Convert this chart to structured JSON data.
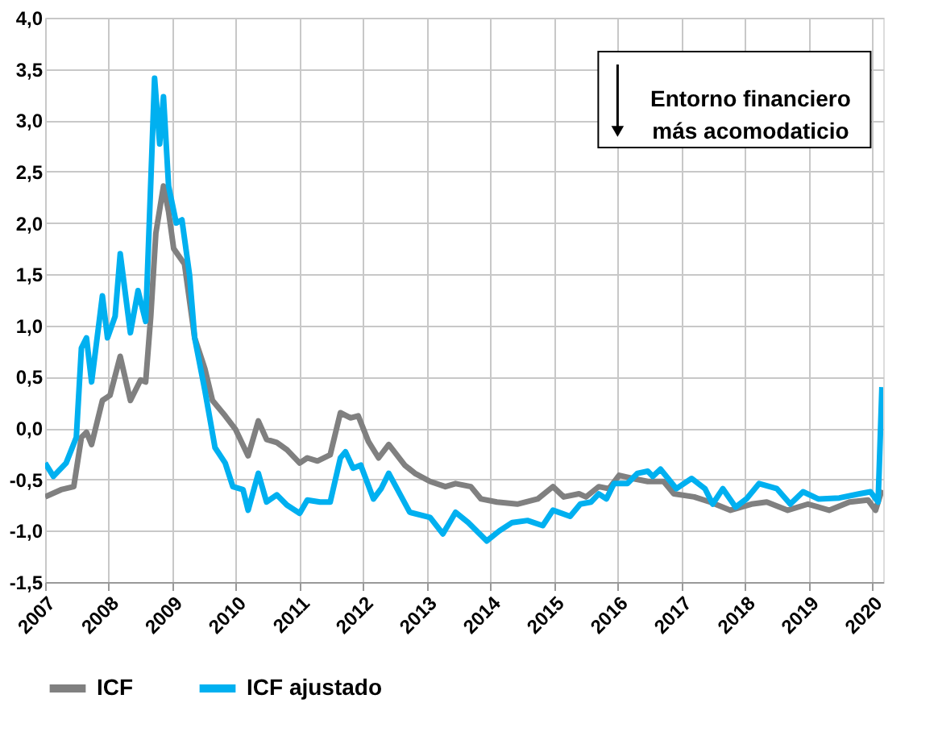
{
  "chart_data": {
    "type": "line",
    "xlim": [
      2007,
      2020.17
    ],
    "xticks": [
      2007,
      2008,
      2009,
      2010,
      2011,
      2012,
      2013,
      2014,
      2015,
      2016,
      2017,
      2018,
      2019,
      2020
    ],
    "ylim": [
      -1.5,
      4.0
    ],
    "yticks": [
      {
        "value": -1.5,
        "label": "-1,5"
      },
      {
        "value": -1.0,
        "label": "-1,0"
      },
      {
        "value": -0.5,
        "label": "-0,5"
      },
      {
        "value": 0.0,
        "label": "0,0"
      },
      {
        "value": 0.5,
        "label": "0,5"
      },
      {
        "value": 1.0,
        "label": "1,0"
      },
      {
        "value": 1.5,
        "label": "1,5"
      },
      {
        "value": 2.0,
        "label": "2,0"
      },
      {
        "value": 2.5,
        "label": "2,5"
      },
      {
        "value": 3.0,
        "label": "3,0"
      },
      {
        "value": 3.5,
        "label": "3,5"
      },
      {
        "value": 4.0,
        "label": "4,0"
      }
    ],
    "grid": true,
    "legend": "bottom",
    "line_style": "solid",
    "marker": "none",
    "annotations": [
      "Entorno financiero\nmás acomodaticio"
    ],
    "series": [
      {
        "name": "ICF",
        "color": "#808080",
        "x": [
          2007.0,
          2007.25,
          2007.45,
          2007.57,
          2007.65,
          2007.73,
          2007.9,
          2008.02,
          2008.18,
          2008.34,
          2008.5,
          2008.58,
          2008.66,
          2008.74,
          2008.86,
          2008.94,
          2009.02,
          2009.19,
          2009.35,
          2009.51,
          2009.63,
          2009.83,
          2009.99,
          2010.19,
          2010.35,
          2010.48,
          2010.64,
          2010.8,
          2011.0,
          2011.12,
          2011.28,
          2011.48,
          2011.64,
          2011.8,
          2011.92,
          2012.08,
          2012.24,
          2012.4,
          2012.65,
          2012.81,
          2013.05,
          2013.29,
          2013.45,
          2013.69,
          2013.85,
          2014.1,
          2014.42,
          2014.74,
          2014.98,
          2015.15,
          2015.39,
          2015.5,
          2015.7,
          2015.86,
          2016.02,
          2016.23,
          2016.47,
          2016.72,
          2016.88,
          2017.2,
          2017.45,
          2017.77,
          2018.1,
          2018.34,
          2018.67,
          2018.99,
          2019.32,
          2019.64,
          2019.93,
          2020.05,
          2020.15
        ],
        "values": [
          -0.67,
          -0.6,
          -0.57,
          -0.09,
          -0.04,
          -0.16,
          0.27,
          0.32,
          0.7,
          0.27,
          0.47,
          0.45,
          1.09,
          1.9,
          2.36,
          2.11,
          1.75,
          1.6,
          0.88,
          0.58,
          0.27,
          0.12,
          -0.01,
          -0.27,
          0.07,
          -0.11,
          -0.14,
          -0.21,
          -0.34,
          -0.29,
          -0.32,
          -0.26,
          0.15,
          0.1,
          0.12,
          -0.13,
          -0.29,
          -0.16,
          -0.36,
          -0.44,
          -0.52,
          -0.57,
          -0.54,
          -0.57,
          -0.69,
          -0.72,
          -0.74,
          -0.69,
          -0.57,
          -0.67,
          -0.64,
          -0.67,
          -0.57,
          -0.59,
          -0.46,
          -0.49,
          -0.52,
          -0.52,
          -0.64,
          -0.67,
          -0.72,
          -0.8,
          -0.74,
          -0.72,
          -0.8,
          -0.74,
          -0.8,
          -0.72,
          -0.7,
          -0.8,
          -0.6
        ]
      },
      {
        "name": "ICF ajustado",
        "color": "#00b0f0",
        "x": [
          2007.0,
          2007.13,
          2007.33,
          2007.49,
          2007.57,
          2007.65,
          2007.73,
          2007.9,
          2007.98,
          2008.1,
          2008.18,
          2008.34,
          2008.46,
          2008.58,
          2008.72,
          2008.8,
          2008.86,
          2008.94,
          2009.06,
          2009.15,
          2009.27,
          2009.35,
          2009.51,
          2009.67,
          2009.83,
          2009.95,
          2010.11,
          2010.19,
          2010.35,
          2010.48,
          2010.64,
          2010.8,
          2011.0,
          2011.12,
          2011.32,
          2011.48,
          2011.64,
          2011.72,
          2011.84,
          2011.96,
          2012.16,
          2012.28,
          2012.4,
          2012.73,
          2013.05,
          2013.25,
          2013.45,
          2013.65,
          2013.94,
          2014.14,
          2014.34,
          2014.58,
          2014.82,
          2014.98,
          2015.25,
          2015.41,
          2015.58,
          2015.7,
          2015.82,
          2015.94,
          2016.15,
          2016.31,
          2016.47,
          2016.55,
          2016.67,
          2016.92,
          2017.16,
          2017.37,
          2017.49,
          2017.65,
          2017.85,
          2018.02,
          2018.22,
          2018.5,
          2018.71,
          2018.91,
          2019.15,
          2019.48,
          2019.8,
          2019.97,
          2020.09,
          2020.15
        ],
        "values": [
          -0.34,
          -0.47,
          -0.34,
          -0.09,
          0.78,
          0.88,
          0.45,
          1.29,
          0.88,
          1.09,
          1.7,
          0.93,
          1.34,
          1.04,
          3.41,
          2.77,
          3.23,
          2.36,
          2.0,
          2.03,
          1.49,
          0.88,
          0.37,
          -0.19,
          -0.34,
          -0.57,
          -0.6,
          -0.8,
          -0.44,
          -0.72,
          -0.65,
          -0.75,
          -0.83,
          -0.7,
          -0.72,
          -0.72,
          -0.29,
          -0.23,
          -0.39,
          -0.36,
          -0.69,
          -0.59,
          -0.44,
          -0.82,
          -0.87,
          -1.03,
          -0.82,
          -0.92,
          -1.1,
          -1.0,
          -0.92,
          -0.9,
          -0.95,
          -0.8,
          -0.86,
          -0.74,
          -0.72,
          -0.64,
          -0.69,
          -0.54,
          -0.54,
          -0.44,
          -0.42,
          -0.47,
          -0.4,
          -0.59,
          -0.49,
          -0.59,
          -0.74,
          -0.59,
          -0.77,
          -0.69,
          -0.54,
          -0.59,
          -0.74,
          -0.62,
          -0.69,
          -0.68,
          -0.64,
          -0.62,
          -0.72,
          0.4
        ]
      }
    ]
  }
}
